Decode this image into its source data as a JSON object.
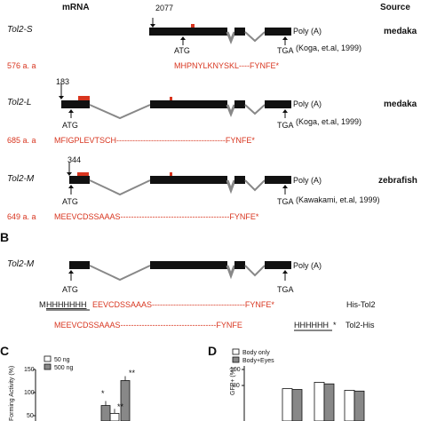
{
  "header": {
    "mrna": "mRNA",
    "source": "Source"
  },
  "panel_a": {
    "rows": [
      {
        "gene": "Tol2-S",
        "site": "2077",
        "start": "ATG",
        "stop": "TGA",
        "polya": "Poly (A)",
        "species": "medaka",
        "ref": "(Koga, et.al, 1999)",
        "length": "576 a. a",
        "seq": "MHPNYLKNYSKL----FYNFE*"
      },
      {
        "gene": "Tol2-L",
        "site": "183",
        "start": "ATG",
        "stop": "TGA",
        "polya": "Poly (A)",
        "species": "medaka",
        "ref": "(Koga, et.al, 1999)",
        "length": "685 a. a",
        "seq": "MFIGPLEVTSCH-----------------------------------------FYNFE*"
      },
      {
        "gene": "Tol2-M",
        "site": "344",
        "start": "ATG",
        "stop": "TGA",
        "polya": "Poly (A)",
        "species": "zebrafish",
        "ref": "(Kawakami, et.al, 1999)",
        "length": "649 a. a",
        "seq": "MEEVCDSSAAAS-----------------------------------------FYNFE*"
      }
    ]
  },
  "panel_b": {
    "letter": "B",
    "gene": "Tol2-M",
    "start": "ATG",
    "stop": "TGA",
    "polya": "Poly (A)",
    "his_n": {
      "m": "M",
      "tag": "HHHHHHH",
      "seq": "EEVCDSSAAAS-----------------------------------FYNFE*",
      "label": "His-Tol2"
    },
    "his_c": {
      "seq": "MEEVCDSSAAAS------------------------------------FYNFE",
      "tag": "HHHHHH",
      "star": "*",
      "label": "Tol2-His"
    }
  },
  "panel_c": {
    "letter": "C",
    "ylabel": "Forming Activity (%)",
    "legend": [
      "50 ng",
      "500 ng"
    ],
    "colors": {
      "s50": "#ffffff",
      "s500": "#888888"
    },
    "yticks": [
      "150",
      "100",
      "50"
    ],
    "ymin": 50,
    "ymax": 150,
    "chart_data": {
      "type": "bar",
      "ylabel": "Forming Activity (%)",
      "series": [
        {
          "name": "50 ng",
          "values": [
            null,
            55
          ]
        },
        {
          "name": "500 ng",
          "values": [
            72,
            126
          ]
        }
      ],
      "significance": [
        "*",
        "**",
        "**"
      ],
      "ylim": [
        50,
        150
      ]
    }
  },
  "panel_d": {
    "letter": "D",
    "ylabel": "GFP+ (%)",
    "legend": [
      "Body only",
      "Body+Eyes"
    ],
    "colors": {
      "body": "#ffffff",
      "eyes": "#888888"
    },
    "yticks": [
      "100",
      "80"
    ],
    "chart_data": {
      "type": "bar",
      "ylabel": "GFP+ (%)",
      "series": [
        {
          "name": "Body only",
          "values": [
            31,
            76,
            84,
            74
          ]
        },
        {
          "name": "Body+Eyes",
          "values": [
            null,
            75,
            82,
            73
          ]
        }
      ],
      "ylim": [
        20,
        110
      ]
    }
  }
}
